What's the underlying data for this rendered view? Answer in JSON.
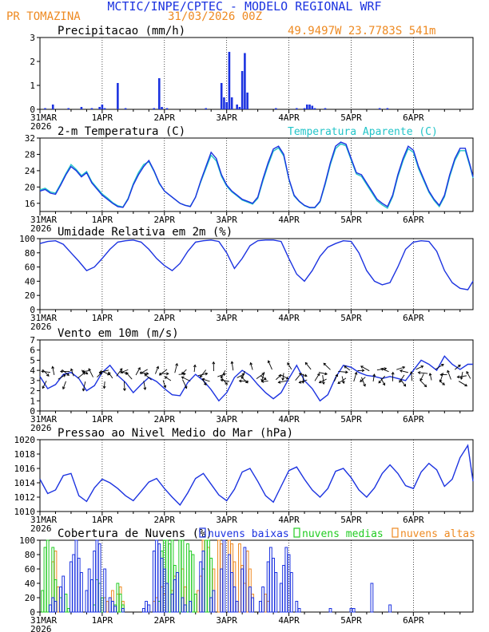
{
  "header": {
    "line1": "MCTIC/INPE/CPTEC - MODELO REGIONAL WRF",
    "station": "PR TOMAZINA",
    "run": "31/03/2026 00Z",
    "coords": "49.9497W 23.7783S 541m"
  },
  "colors": {
    "blue": "#1c33e0",
    "cyan": "#22c4c8",
    "orange": "#ee8a22",
    "green": "#22cc22",
    "black": "#000000"
  },
  "xticks": [
    "31MAR",
    "1APR",
    "2APR",
    "3APR",
    "4APR",
    "5APR",
    "6APR"
  ],
  "year": "2026",
  "chart_data": [
    {
      "type": "bar",
      "title": "Precipitacao (mm/h)",
      "ylim": [
        0,
        3
      ],
      "yticks": [
        0,
        1,
        2,
        3
      ],
      "x_unit": "hours since 31MAR 00Z",
      "bars": [
        [
          2,
          0.05
        ],
        [
          5,
          0.2
        ],
        [
          11,
          0.05
        ],
        [
          16,
          0.1
        ],
        [
          20,
          0.05
        ],
        [
          23,
          0.1
        ],
        [
          24,
          0.2
        ],
        [
          25,
          0.05
        ],
        [
          30,
          1.1
        ],
        [
          33,
          0.05
        ],
        [
          44,
          0.05
        ],
        [
          46,
          1.3
        ],
        [
          47,
          0.1
        ],
        [
          49,
          0.05
        ],
        [
          64,
          0.05
        ],
        [
          70,
          1.1
        ],
        [
          71,
          0.5
        ],
        [
          72,
          0.3
        ],
        [
          73,
          2.4
        ],
        [
          74,
          0.5
        ],
        [
          76,
          0.2
        ],
        [
          77,
          0.1
        ],
        [
          78,
          1.6
        ],
        [
          79,
          2.35
        ],
        [
          80,
          0.7
        ],
        [
          91,
          0.05
        ],
        [
          99,
          0.05
        ],
        [
          102,
          0.05
        ],
        [
          103,
          0.2
        ],
        [
          104,
          0.2
        ],
        [
          105,
          0.15
        ],
        [
          106,
          0.05
        ],
        [
          110,
          0.05
        ],
        [
          131,
          0.05
        ],
        [
          134,
          0.05
        ]
      ]
    },
    {
      "type": "line",
      "title": "2-m Temperatura (C)",
      "legend": "Temperatura Aparente (C)",
      "ylim": [
        14,
        32
      ],
      "yticks": [
        16,
        20,
        24,
        28,
        32
      ],
      "series": [
        {
          "name": "Temperatura",
          "x": [
            0,
            2,
            4,
            6,
            8,
            10,
            12,
            14,
            16,
            18,
            20,
            22,
            24,
            26,
            28,
            30,
            32,
            34,
            36,
            38,
            40,
            42,
            44,
            46,
            48,
            50,
            52,
            54,
            56,
            58,
            60,
            62,
            64,
            66,
            68,
            70,
            72,
            74,
            76,
            78,
            80,
            82,
            84,
            86,
            88,
            90,
            92,
            94,
            96,
            98,
            100,
            102,
            104,
            106,
            108,
            110,
            112,
            114,
            116,
            118,
            120,
            122,
            124,
            126,
            128,
            130,
            132,
            134,
            136,
            138,
            140,
            142,
            144,
            146,
            148,
            150,
            152,
            154,
            156,
            158,
            160,
            162,
            164,
            166,
            167
          ],
          "values": [
            19,
            19.4,
            18.5,
            18.2,
            20.5,
            23,
            25,
            24,
            22.5,
            23.5,
            21,
            19.5,
            18,
            17,
            16,
            15.2,
            15,
            17,
            20.5,
            23,
            25,
            26.5,
            24,
            21,
            19,
            18,
            17,
            16,
            15.5,
            15.2,
            17.5,
            21.5,
            25,
            28.5,
            27,
            23,
            20.5,
            19,
            18,
            17,
            16.5,
            16,
            17.5,
            22,
            26,
            29.3,
            30,
            28,
            22,
            18,
            16.5,
            15.5,
            15,
            15,
            16.5,
            21,
            26,
            30,
            31,
            30.5,
            27,
            23.5,
            23,
            21,
            19,
            17,
            16,
            15.2,
            18,
            23,
            27,
            30,
            29,
            25,
            22,
            19,
            17,
            15.5,
            18,
            23,
            27,
            29.5,
            29.5,
            25,
            22.5
          ]
        },
        {
          "name": "Temperatura Aparente",
          "x": [
            0,
            2,
            4,
            6,
            8,
            10,
            12,
            14,
            16,
            18,
            20,
            22,
            24,
            26,
            28,
            30,
            32,
            34,
            36,
            38,
            40,
            42,
            44,
            46,
            48,
            50,
            52,
            54,
            56,
            58,
            60,
            62,
            64,
            66,
            68,
            70,
            72,
            74,
            76,
            78,
            80,
            82,
            84,
            86,
            88,
            90,
            92,
            94,
            96,
            98,
            100,
            102,
            104,
            106,
            108,
            110,
            112,
            114,
            116,
            118,
            120,
            122,
            124,
            126,
            128,
            130,
            132,
            134,
            136,
            138,
            140,
            142,
            144,
            146,
            148,
            150,
            152,
            154,
            156,
            158,
            160,
            162,
            164,
            166,
            167
          ],
          "values": [
            19.3,
            19.7,
            18.8,
            18.5,
            20.8,
            23.3,
            25.5,
            24.3,
            22.8,
            23.8,
            21.3,
            19.8,
            18.3,
            17.3,
            16.2,
            15.4,
            15.1,
            17.2,
            20.8,
            23.5,
            25.5,
            26.2,
            23.8,
            20.8,
            19,
            18,
            17,
            16,
            15.5,
            15.3,
            17.5,
            21.2,
            24.5,
            27.8,
            26.4,
            22.6,
            20.2,
            18.8,
            17.8,
            16.8,
            16.3,
            15.8,
            17.2,
            21.5,
            25.4,
            28.8,
            29.6,
            27.6,
            21.8,
            17.8,
            16.4,
            15.4,
            14.9,
            14.9,
            16.3,
            20.6,
            25.5,
            29.4,
            30.6,
            30.1,
            26.6,
            23.2,
            22.6,
            20.6,
            18.6,
            16.6,
            15.6,
            14.8,
            17.6,
            22.5,
            26.4,
            29.4,
            28.5,
            24.5,
            21.6,
            18.7,
            16.7,
            15.2,
            17.6,
            22.5,
            26.5,
            28.9,
            28.9,
            24.6,
            22.2
          ]
        }
      ]
    },
    {
      "type": "line",
      "title": "Umidade Relativa em 2m (%)",
      "ylim": [
        0,
        100
      ],
      "yticks": [
        0,
        20,
        40,
        60,
        80,
        100
      ],
      "x": [
        0,
        3,
        6,
        9,
        12,
        15,
        18,
        21,
        24,
        27,
        30,
        33,
        36,
        39,
        42,
        45,
        48,
        51,
        54,
        57,
        60,
        63,
        66,
        69,
        72,
        75,
        78,
        81,
        84,
        87,
        90,
        93,
        96,
        99,
        102,
        105,
        108,
        111,
        114,
        117,
        120,
        123,
        126,
        129,
        132,
        135,
        138,
        141,
        144,
        147,
        150,
        153,
        156,
        159,
        162,
        165,
        167
      ],
      "values": [
        93,
        96,
        97,
        92,
        80,
        68,
        55,
        60,
        72,
        85,
        95,
        97,
        98,
        95,
        85,
        72,
        62,
        55,
        65,
        82,
        95,
        97,
        98,
        96,
        80,
        58,
        72,
        90,
        97,
        98,
        98,
        96,
        72,
        50,
        40,
        55,
        75,
        88,
        93,
        97,
        96,
        80,
        55,
        40,
        35,
        38,
        60,
        85,
        95,
        97,
        96,
        82,
        55,
        38,
        30,
        28,
        40
      ]
    },
    {
      "type": "line",
      "title": "Vento em 10m (m/s)",
      "ylim": [
        0,
        7
      ],
      "yticks": [
        0,
        1,
        2,
        3,
        4,
        5,
        6,
        7
      ],
      "x": [
        0,
        3,
        6,
        9,
        12,
        15,
        18,
        21,
        24,
        27,
        30,
        33,
        36,
        39,
        42,
        45,
        48,
        51,
        54,
        57,
        60,
        63,
        66,
        69,
        72,
        75,
        78,
        81,
        84,
        87,
        90,
        93,
        96,
        99,
        102,
        105,
        108,
        111,
        114,
        117,
        120,
        123,
        126,
        129,
        132,
        135,
        138,
        141,
        144,
        147,
        150,
        153,
        156,
        159,
        162,
        165,
        167
      ],
      "values": [
        3.4,
        2.2,
        2.6,
        3.6,
        3.8,
        3.2,
        2.0,
        2.5,
        3.8,
        4.5,
        3.5,
        2.8,
        1.8,
        2.6,
        3.3,
        2.9,
        2.2,
        1.6,
        1.5,
        2.8,
        3.6,
        3.0,
        2.1,
        1.0,
        1.8,
        3.3,
        4.0,
        3.5,
        2.6,
        1.8,
        1.2,
        1.8,
        3.2,
        4.5,
        3.0,
        2.2,
        1.0,
        1.6,
        3.3,
        4.5,
        4.3,
        3.8,
        3.5,
        3.4,
        3.2,
        3.4,
        3.2,
        3.0,
        4.0,
        5.0,
        4.6,
        4.0,
        5.4,
        4.6,
        4.1,
        4.6,
        4.6
      ]
    },
    {
      "type": "line",
      "title": "Pressao ao Nivel Medio do Mar (hPa)",
      "ylim": [
        1010,
        1020
      ],
      "yticks": [
        1010,
        1012,
        1014,
        1016,
        1018,
        1020
      ],
      "x": [
        0,
        3,
        6,
        9,
        12,
        15,
        18,
        21,
        24,
        27,
        30,
        33,
        36,
        39,
        42,
        45,
        48,
        51,
        54,
        57,
        60,
        63,
        66,
        69,
        72,
        75,
        78,
        81,
        84,
        87,
        90,
        93,
        96,
        99,
        102,
        105,
        108,
        111,
        114,
        117,
        120,
        123,
        126,
        129,
        132,
        135,
        138,
        141,
        144,
        147,
        150,
        153,
        156,
        159,
        162,
        165,
        167
      ],
      "values": [
        1014.5,
        1012.5,
        1013,
        1015,
        1015.3,
        1012.2,
        1011.4,
        1013.3,
        1014.5,
        1014,
        1013.2,
        1012.2,
        1011.5,
        1012.8,
        1014.1,
        1014.6,
        1013.2,
        1012,
        1010.9,
        1012.6,
        1014.6,
        1015.3,
        1013.8,
        1012.3,
        1011.5,
        1013.1,
        1015.5,
        1016,
        1014.2,
        1012.2,
        1011.3,
        1013.5,
        1015.7,
        1016.2,
        1014.5,
        1013,
        1012,
        1013.2,
        1015.6,
        1016,
        1014.7,
        1013,
        1012,
        1013.3,
        1015.3,
        1016.5,
        1015.3,
        1013.6,
        1013.2,
        1015.5,
        1016.7,
        1015.8,
        1013.5,
        1014.5,
        1017.5,
        1019.2,
        1014.2
      ]
    },
    {
      "type": "bar",
      "title": "Cobertura de Nuvens (%)",
      "legend": [
        "nuvens baixas",
        "nuvens medias",
        "nuvens altas"
      ],
      "ylim": [
        0,
        100
      ],
      "yticks": [
        0,
        20,
        40,
        60,
        80,
        100
      ],
      "series": [
        {
          "name": "nuvens baixas",
          "x": [
            4,
            5,
            6,
            8,
            9,
            12,
            13,
            14,
            15,
            16,
            18,
            19,
            20,
            21,
            22,
            23,
            25,
            27,
            28,
            29,
            32,
            40,
            41,
            42,
            44,
            45,
            46,
            47,
            48,
            49,
            51,
            52,
            53,
            55,
            56,
            58,
            62,
            63,
            66,
            67,
            70,
            71,
            73,
            74,
            75,
            76,
            78,
            79,
            81,
            82,
            85,
            86,
            88,
            89,
            90,
            91,
            93,
            94,
            95,
            96,
            97,
            99,
            100,
            112,
            120,
            121,
            128,
            135
          ],
          "values": [
            10,
            20,
            15,
            35,
            50,
            70,
            80,
            100,
            75,
            55,
            30,
            60,
            45,
            85,
            100,
            95,
            60,
            20,
            15,
            8,
            5,
            5,
            15,
            10,
            85,
            100,
            95,
            75,
            60,
            40,
            25,
            45,
            55,
            20,
            10,
            15,
            70,
            85,
            20,
            30,
            60,
            100,
            80,
            55,
            35,
            15,
            60,
            90,
            35,
            20,
            15,
            35,
            70,
            90,
            75,
            55,
            40,
            65,
            90,
            80,
            55,
            15,
            5,
            5,
            5,
            5,
            40,
            10
          ]
        },
        {
          "name": "nuvens medias",
          "x": [
            1,
            2,
            3,
            5,
            6,
            8,
            10,
            11,
            21,
            22,
            23,
            24,
            29,
            30,
            31,
            32,
            46,
            47,
            48,
            49,
            50,
            51,
            52,
            54,
            55,
            57,
            58,
            59,
            60,
            63,
            64,
            65,
            66
          ],
          "values": [
            30,
            90,
            100,
            90,
            45,
            20,
            25,
            5,
            10,
            45,
            40,
            20,
            10,
            40,
            25,
            10,
            15,
            85,
            100,
            100,
            95,
            100,
            65,
            100,
            100,
            95,
            85,
            80,
            25,
            60,
            100,
            100,
            75
          ]
        },
        {
          "name": "nuvens altas",
          "x": [
            5,
            6,
            7,
            25,
            26,
            28,
            30,
            31,
            32,
            44,
            45,
            47,
            48,
            51,
            52,
            55,
            56,
            61,
            62,
            63,
            65,
            67,
            69,
            70,
            73,
            74,
            75,
            77,
            78,
            79,
            80,
            81,
            82,
            87,
            88
          ],
          "values": [
            70,
            85,
            35,
            20,
            15,
            30,
            25,
            35,
            15,
            15,
            20,
            35,
            25,
            30,
            50,
            60,
            35,
            30,
            50,
            100,
            90,
            60,
            100,
            95,
            100,
            95,
            70,
            95,
            65,
            40,
            85,
            60,
            25,
            25,
            15
          ]
        }
      ]
    }
  ]
}
